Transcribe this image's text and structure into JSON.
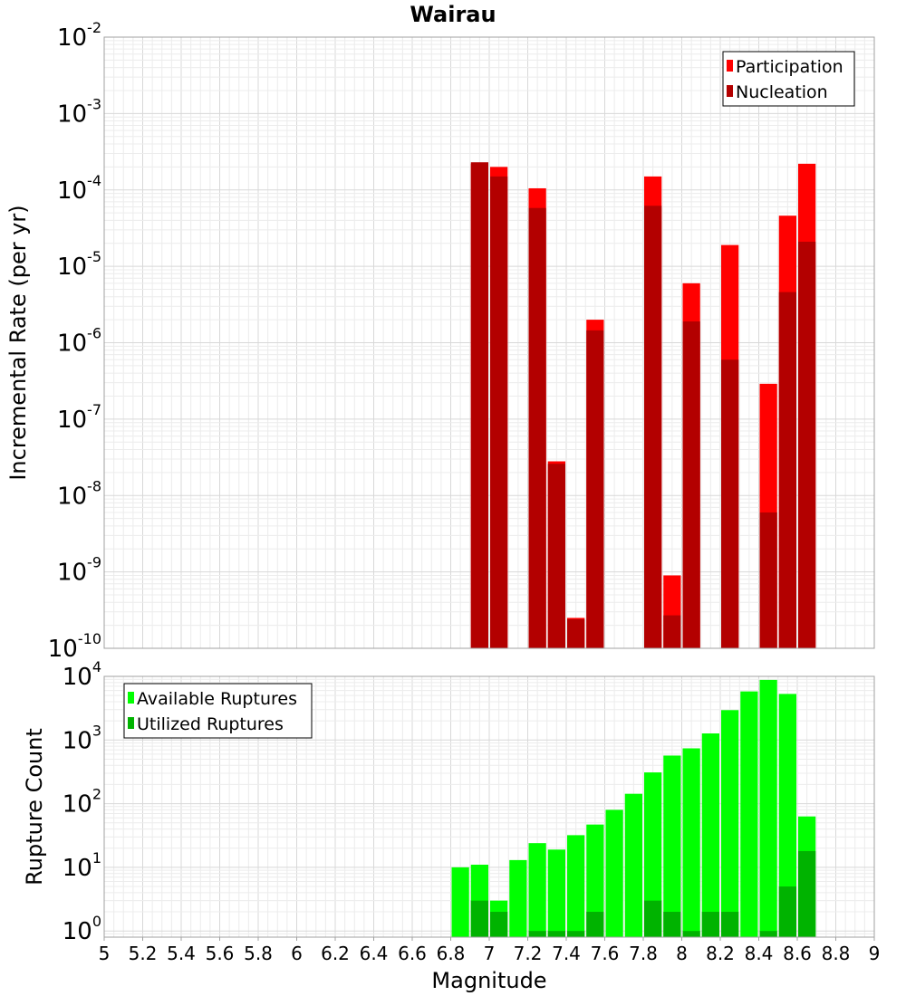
{
  "title": "Wairau",
  "chart_data": [
    {
      "type": "bar",
      "scale": "log",
      "ylabel": "Incremental Rate (per yr)",
      "xlabel": "",
      "xlim": [
        5,
        9
      ],
      "ylim": [
        1e-10,
        0.01
      ],
      "y_tick_exponents": [
        -2,
        -3,
        -4,
        -5,
        -6,
        -7,
        -8,
        -9,
        -10
      ],
      "grid": true,
      "legend_position": "top-right",
      "bar_width": 0.1,
      "series": [
        {
          "name": "Participation",
          "color": "#ff0000",
          "x": [
            6.95,
            7.05,
            7.25,
            7.35,
            7.45,
            7.55,
            7.85,
            7.95,
            8.05,
            8.25,
            8.45,
            8.55,
            8.65
          ],
          "values": [
            0.00022,
            0.0002,
            0.000105,
            2.8e-08,
            2.5e-10,
            2e-06,
            0.00015,
            9e-10,
            6e-06,
            1.9e-05,
            2.9e-07,
            4.6e-05,
            0.00022
          ]
        },
        {
          "name": "Nucleation",
          "color": "#b30000",
          "x": [
            6.95,
            7.05,
            7.25,
            7.35,
            7.45,
            7.55,
            7.85,
            7.95,
            8.05,
            8.25,
            8.45,
            8.55,
            8.65
          ],
          "values": [
            0.00023,
            0.00015,
            5.8e-05,
            2.6e-08,
            2.4e-10,
            1.45e-06,
            6.2e-05,
            2.7e-10,
            1.9e-06,
            6e-07,
            6e-09,
            4.6e-06,
            2.1e-05
          ]
        }
      ]
    },
    {
      "type": "bar",
      "scale": "log",
      "ylabel": "Rupture Count",
      "xlabel": "Magnitude",
      "xlim": [
        5,
        9
      ],
      "ylim": [
        0.8,
        10000
      ],
      "y_tick_exponents": [
        4,
        3,
        2,
        1,
        0
      ],
      "x_ticks": [
        "5",
        "5.2",
        "5.4",
        "5.6",
        "5.8",
        "6",
        "6.2",
        "6.4",
        "6.6",
        "6.8",
        "7",
        "7.2",
        "7.4",
        "7.6",
        "7.8",
        "8",
        "8.2",
        "8.4",
        "8.6",
        "8.8",
        "9"
      ],
      "grid": true,
      "legend_position": "top-left",
      "bar_width": 0.1,
      "series": [
        {
          "name": "Available Ruptures",
          "color": "#00ff00",
          "x": [
            6.85,
            6.95,
            7.05,
            7.15,
            7.25,
            7.35,
            7.45,
            7.55,
            7.65,
            7.75,
            7.85,
            7.95,
            8.05,
            8.15,
            8.25,
            8.35,
            8.45,
            8.55,
            8.65
          ],
          "values": [
            10,
            11,
            3,
            13,
            24,
            19,
            32,
            47,
            80,
            143,
            310,
            570,
            740,
            1270,
            2950,
            5800,
            8800,
            5300,
            63
          ]
        },
        {
          "name": "Utilized Ruptures",
          "color": "#00b300",
          "x": [
            6.95,
            7.05,
            7.25,
            7.35,
            7.45,
            7.55,
            7.85,
            7.95,
            8.05,
            8.15,
            8.25,
            8.45,
            8.55,
            8.65
          ],
          "values": [
            3,
            2,
            1,
            1,
            1,
            2,
            3,
            2,
            1,
            2,
            2,
            1,
            5,
            18
          ]
        }
      ]
    }
  ]
}
